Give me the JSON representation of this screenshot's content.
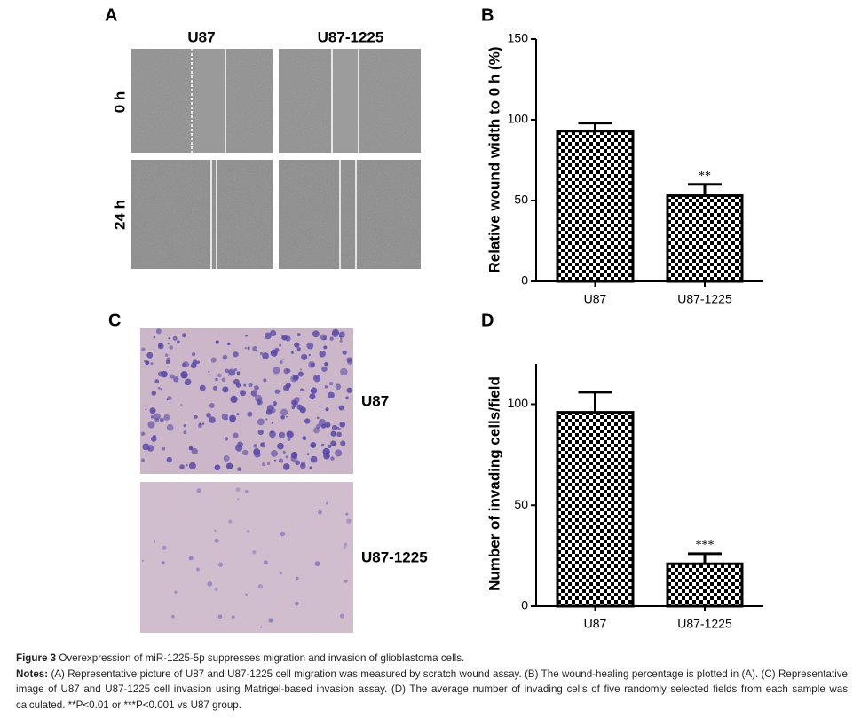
{
  "panels": {
    "a": "A",
    "b": "B",
    "c": "C",
    "d": "D"
  },
  "wound_images": {
    "columns": [
      "U87",
      "U87-1225"
    ],
    "rows": [
      "0 h",
      "24 h"
    ]
  },
  "invasion_images": {
    "rows": [
      "U87",
      "U87-1225"
    ]
  },
  "chart_data": [
    {
      "type": "bar",
      "categories": [
        "U87",
        "U87-1225"
      ],
      "values": [
        93,
        53
      ],
      "errors": [
        5,
        7
      ],
      "significance": [
        null,
        "**"
      ],
      "y_label": "Relative wound width to 0 h (%)",
      "ylim": [
        0,
        150
      ],
      "yticks": [
        0,
        50,
        100,
        150
      ],
      "color": "#000000",
      "fill_pattern": "checkerboard"
    },
    {
      "type": "bar",
      "categories": [
        "U87",
        "U87-1225"
      ],
      "values": [
        96,
        21
      ],
      "errors": [
        10,
        5
      ],
      "significance": [
        null,
        "***"
      ],
      "y_label": "Number of invading cells/field",
      "ylim": [
        0,
        120
      ],
      "yticks": [
        0,
        50,
        100
      ],
      "color": "#000000",
      "fill_pattern": "checkerboard"
    }
  ],
  "caption": {
    "label": "Figure 3",
    "text": "Overexpression of miR-1225-5p suppresses migration and invasion of glioblastoma cells.",
    "notes_label": "Notes:",
    "notes": "(A) Representative picture of U87 and U87-1225 cell migration was measured by scratch wound assay. (B) The wound-healing percentage is plotted in (A). (C) Representative image of U87 and U87-1225 cell invasion using Matrigel-based invasion assay. (D) The average number of invading cells of five randomly selected fields from each sample was calculated. **P<0.01 or ***P<0.001 vs U87 group."
  }
}
